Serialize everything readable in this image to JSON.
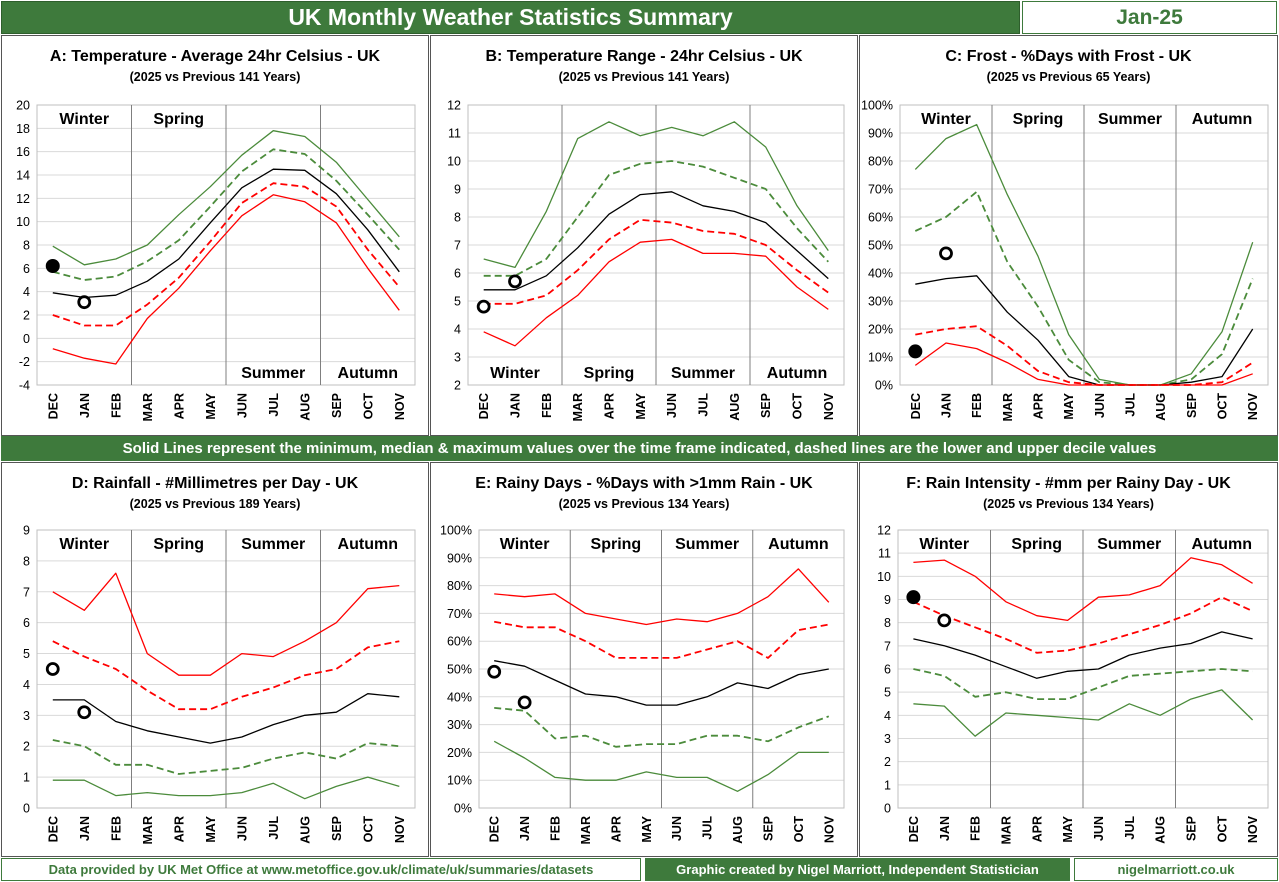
{
  "header": {
    "title": "UK Monthly Weather Statistics Summary",
    "date": "Jan-25"
  },
  "middle_note": "Solid Lines represent the minimum, median & maximum values over the time frame indicated, dashed lines are the lower and upper decile values",
  "footer": {
    "source": "Data provided by UK Met Office at www.metoffice.gov.uk/climate/uk/summaries/datasets",
    "credit": "Graphic created by Nigel Marriott, Independent Statistician",
    "website": "nigelmarriott.co.uk"
  },
  "colors": {
    "banner": "#3e7a3c",
    "green": "#4b8b3b",
    "red": "#ff0000",
    "black": "#000000"
  },
  "chart_data": [
    {
      "id": "A",
      "type": "line",
      "title": "A: Temperature - Average 24hr Celsius - UK",
      "subtitle": "(2025 vs Previous 141 Years)",
      "categories": [
        "DEC",
        "JAN",
        "FEB",
        "MAR",
        "APR",
        "MAY",
        "JUN",
        "JUL",
        "AUG",
        "SEP",
        "OCT",
        "NOV"
      ],
      "ylim": [
        -4,
        20
      ],
      "yticks": [
        -4,
        -2,
        0,
        2,
        4,
        6,
        8,
        10,
        12,
        14,
        16,
        18,
        20
      ],
      "percent": false,
      "season_labels": [
        "Winter",
        "Spring",
        "Summer",
        "Autumn"
      ],
      "season_label_pos": [
        "top",
        "top",
        "bottom",
        "bottom"
      ],
      "series": [
        {
          "role": "max",
          "color": "green",
          "dash": false,
          "values": [
            7.9,
            6.3,
            6.8,
            8.0,
            10.6,
            13.0,
            15.7,
            17.8,
            17.3,
            15.1,
            11.9,
            8.7
          ]
        },
        {
          "role": "upper-decile",
          "color": "green",
          "dash": true,
          "values": [
            5.7,
            5.0,
            5.3,
            6.6,
            8.4,
            11.3,
            14.3,
            16.2,
            15.8,
            13.5,
            10.6,
            7.6
          ]
        },
        {
          "role": "median",
          "color": "black",
          "dash": false,
          "values": [
            3.9,
            3.5,
            3.7,
            4.9,
            6.8,
            9.9,
            12.9,
            14.5,
            14.4,
            12.4,
            9.3,
            5.7
          ]
        },
        {
          "role": "lower-decile",
          "color": "red",
          "dash": true,
          "values": [
            2.0,
            1.1,
            1.1,
            2.9,
            5.2,
            8.3,
            11.6,
            13.3,
            13.0,
            11.3,
            7.6,
            4.4
          ]
        },
        {
          "role": "min",
          "color": "red",
          "dash": false,
          "values": [
            -0.9,
            -1.7,
            -2.2,
            1.7,
            4.3,
            7.5,
            10.5,
            12.3,
            11.7,
            9.9,
            6.0,
            2.4
          ]
        }
      ],
      "points": [
        {
          "label": "DEC",
          "value": 6.2,
          "filled": true
        },
        {
          "label": "JAN",
          "value": 3.1,
          "filled": false
        }
      ]
    },
    {
      "id": "B",
      "type": "line",
      "title": "B: Temperature Range - 24hr Celsius - UK",
      "subtitle": "(2025 vs Previous 141 Years)",
      "categories": [
        "DEC",
        "JAN",
        "FEB",
        "MAR",
        "APR",
        "MAY",
        "JUN",
        "JUL",
        "AUG",
        "SEP",
        "OCT",
        "NOV"
      ],
      "ylim": [
        2,
        12
      ],
      "yticks": [
        2,
        3,
        4,
        5,
        6,
        7,
        8,
        9,
        10,
        11,
        12
      ],
      "percent": false,
      "season_labels": [
        "Winter",
        "Spring",
        "Summer",
        "Autumn"
      ],
      "season_label_pos": [
        "bottom",
        "bottom",
        "bottom",
        "bottom"
      ],
      "series": [
        {
          "role": "max",
          "color": "green",
          "dash": false,
          "values": [
            6.5,
            6.2,
            8.2,
            10.8,
            11.4,
            10.9,
            11.2,
            10.9,
            11.4,
            10.5,
            8.4,
            6.8
          ]
        },
        {
          "role": "upper-decile",
          "color": "green",
          "dash": true,
          "values": [
            5.9,
            5.9,
            6.5,
            8.0,
            9.5,
            9.9,
            10.0,
            9.8,
            9.4,
            9.0,
            7.6,
            6.4
          ]
        },
        {
          "role": "median",
          "color": "black",
          "dash": false,
          "values": [
            5.4,
            5.4,
            5.9,
            6.9,
            8.1,
            8.8,
            8.9,
            8.4,
            8.2,
            7.8,
            6.8,
            5.8
          ]
        },
        {
          "role": "lower-decile",
          "color": "red",
          "dash": true,
          "values": [
            4.9,
            4.9,
            5.2,
            6.1,
            7.2,
            7.9,
            7.8,
            7.5,
            7.4,
            7.0,
            6.1,
            5.3
          ]
        },
        {
          "role": "min",
          "color": "red",
          "dash": false,
          "values": [
            3.9,
            3.4,
            4.4,
            5.2,
            6.4,
            7.1,
            7.2,
            6.7,
            6.7,
            6.6,
            5.5,
            4.7
          ]
        }
      ],
      "points": [
        {
          "label": "DEC",
          "value": 4.8,
          "filled": false
        },
        {
          "label": "JAN",
          "value": 5.7,
          "filled": false
        }
      ]
    },
    {
      "id": "C",
      "type": "line",
      "title": "C: Frost - %Days with Frost - UK",
      "subtitle": "(2025 vs Previous 65 Years)",
      "categories": [
        "DEC",
        "JAN",
        "FEB",
        "MAR",
        "APR",
        "MAY",
        "JUN",
        "JUL",
        "AUG",
        "SEP",
        "OCT",
        "NOV"
      ],
      "ylim": [
        0,
        100
      ],
      "yticks": [
        0,
        10,
        20,
        30,
        40,
        50,
        60,
        70,
        80,
        90,
        100
      ],
      "percent": true,
      "season_labels": [
        "Winter",
        "Spring",
        "Summer",
        "Autumn"
      ],
      "season_label_pos": [
        "top",
        "top",
        "top",
        "top"
      ],
      "series": [
        {
          "role": "max",
          "color": "green",
          "dash": false,
          "values": [
            77,
            88,
            93,
            68,
            46,
            18,
            2,
            0,
            0,
            4,
            19,
            51
          ]
        },
        {
          "role": "upper-decile",
          "color": "green",
          "dash": true,
          "values": [
            55,
            60,
            69,
            44,
            28,
            9,
            1,
            0,
            0,
            2,
            11,
            38
          ]
        },
        {
          "role": "median",
          "color": "black",
          "dash": false,
          "values": [
            36,
            38,
            39,
            26,
            16,
            3,
            0,
            0,
            0,
            1,
            3,
            20
          ]
        },
        {
          "role": "lower-decile",
          "color": "red",
          "dash": true,
          "values": [
            18,
            20,
            21,
            14,
            5,
            1,
            0,
            0,
            0,
            0,
            1,
            8
          ]
        },
        {
          "role": "min",
          "color": "red",
          "dash": false,
          "values": [
            7,
            15,
            13,
            8,
            2,
            0,
            0,
            0,
            0,
            0,
            0,
            4
          ]
        }
      ],
      "points": [
        {
          "label": "DEC",
          "value": 12,
          "filled": true
        },
        {
          "label": "JAN",
          "value": 47,
          "filled": false
        }
      ]
    },
    {
      "id": "D",
      "type": "line",
      "title": "D: Rainfall - #Millimetres per Day - UK",
      "subtitle": "(2025 vs Previous 189 Years)",
      "categories": [
        "DEC",
        "JAN",
        "FEB",
        "MAR",
        "APR",
        "MAY",
        "JUN",
        "JUL",
        "AUG",
        "SEP",
        "OCT",
        "NOV"
      ],
      "ylim": [
        0,
        9
      ],
      "yticks": [
        0,
        1,
        2,
        3,
        4,
        5,
        6,
        7,
        8,
        9
      ],
      "percent": false,
      "season_labels": [
        "Winter",
        "Spring",
        "Summer",
        "Autumn"
      ],
      "season_label_pos": [
        "top",
        "top",
        "top",
        "top"
      ],
      "series": [
        {
          "role": "max",
          "color": "red",
          "dash": false,
          "values": [
            7.0,
            6.4,
            7.6,
            5.0,
            4.3,
            4.3,
            5.0,
            4.9,
            5.4,
            6.0,
            7.1,
            7.2
          ]
        },
        {
          "role": "upper-decile",
          "color": "red",
          "dash": true,
          "values": [
            5.4,
            4.9,
            4.5,
            3.8,
            3.2,
            3.2,
            3.6,
            3.9,
            4.3,
            4.5,
            5.2,
            5.4
          ]
        },
        {
          "role": "median",
          "color": "black",
          "dash": false,
          "values": [
            3.5,
            3.5,
            2.8,
            2.5,
            2.3,
            2.1,
            2.3,
            2.7,
            3.0,
            3.1,
            3.7,
            3.6
          ]
        },
        {
          "role": "lower-decile",
          "color": "green",
          "dash": true,
          "values": [
            2.2,
            2.0,
            1.4,
            1.4,
            1.1,
            1.2,
            1.3,
            1.6,
            1.8,
            1.6,
            2.1,
            2.0
          ]
        },
        {
          "role": "min",
          "color": "green",
          "dash": false,
          "values": [
            0.9,
            0.9,
            0.4,
            0.5,
            0.4,
            0.4,
            0.5,
            0.8,
            0.3,
            0.7,
            1.0,
            0.7
          ]
        }
      ],
      "points": [
        {
          "label": "DEC",
          "value": 4.5,
          "filled": false
        },
        {
          "label": "JAN",
          "value": 3.1,
          "filled": false
        }
      ]
    },
    {
      "id": "E",
      "type": "line",
      "title": "E: Rainy Days - %Days with >1mm Rain - UK",
      "subtitle": "(2025 vs Previous 134 Years)",
      "categories": [
        "DEC",
        "JAN",
        "FEB",
        "MAR",
        "APR",
        "MAY",
        "JUN",
        "JUL",
        "AUG",
        "SEP",
        "OCT",
        "NOV"
      ],
      "ylim": [
        0,
        100
      ],
      "yticks": [
        0,
        10,
        20,
        30,
        40,
        50,
        60,
        70,
        80,
        90,
        100
      ],
      "percent": true,
      "season_labels": [
        "Winter",
        "Spring",
        "Summer",
        "Autumn"
      ],
      "season_label_pos": [
        "top",
        "top",
        "top",
        "top"
      ],
      "series": [
        {
          "role": "max",
          "color": "red",
          "dash": false,
          "values": [
            77,
            76,
            77,
            70,
            68,
            66,
            68,
            67,
            70,
            76,
            86,
            74
          ]
        },
        {
          "role": "upper-decile",
          "color": "red",
          "dash": true,
          "values": [
            67,
            65,
            65,
            60,
            54,
            54,
            54,
            57,
            60,
            54,
            64,
            66
          ]
        },
        {
          "role": "median",
          "color": "black",
          "dash": false,
          "values": [
            53,
            51,
            46,
            41,
            40,
            37,
            37,
            40,
            45,
            43,
            48,
            50
          ]
        },
        {
          "role": "lower-decile",
          "color": "green",
          "dash": true,
          "values": [
            36,
            35,
            25,
            26,
            22,
            23,
            23,
            26,
            26,
            24,
            29,
            33
          ]
        },
        {
          "role": "min",
          "color": "green",
          "dash": false,
          "values": [
            24,
            18,
            11,
            10,
            10,
            13,
            11,
            11,
            6,
            12,
            20,
            20
          ]
        }
      ],
      "points": [
        {
          "label": "DEC",
          "value": 49,
          "filled": false
        },
        {
          "label": "JAN",
          "value": 38,
          "filled": false
        }
      ]
    },
    {
      "id": "F",
      "type": "line",
      "title": "F: Rain Intensity - #mm per Rainy Day - UK",
      "subtitle": "(2025 vs Previous 134 Years)",
      "categories": [
        "DEC",
        "JAN",
        "FEB",
        "MAR",
        "APR",
        "MAY",
        "JUN",
        "JUL",
        "AUG",
        "SEP",
        "OCT",
        "NOV"
      ],
      "ylim": [
        0,
        12
      ],
      "yticks": [
        0,
        1,
        2,
        3,
        4,
        5,
        6,
        7,
        8,
        9,
        10,
        11,
        12
      ],
      "percent": false,
      "season_labels": [
        "Winter",
        "Spring",
        "Summer",
        "Autumn"
      ],
      "season_label_pos": [
        "top",
        "top",
        "top",
        "top"
      ],
      "series": [
        {
          "role": "max",
          "color": "red",
          "dash": false,
          "values": [
            10.6,
            10.7,
            10.0,
            8.9,
            8.3,
            8.1,
            9.1,
            9.2,
            9.6,
            10.8,
            10.5,
            9.7
          ]
        },
        {
          "role": "upper-decile",
          "color": "red",
          "dash": true,
          "values": [
            8.9,
            8.3,
            7.8,
            7.3,
            6.7,
            6.8,
            7.1,
            7.5,
            7.9,
            8.4,
            9.1,
            8.5
          ]
        },
        {
          "role": "median",
          "color": "black",
          "dash": false,
          "values": [
            7.3,
            7.0,
            6.6,
            6.1,
            5.6,
            5.9,
            6.0,
            6.6,
            6.9,
            7.1,
            7.6,
            7.3
          ]
        },
        {
          "role": "lower-decile",
          "color": "green",
          "dash": true,
          "values": [
            6.0,
            5.7,
            4.8,
            5.0,
            4.7,
            4.7,
            5.2,
            5.7,
            5.8,
            5.9,
            6.0,
            5.9
          ]
        },
        {
          "role": "min",
          "color": "green",
          "dash": false,
          "values": [
            4.5,
            4.4,
            3.1,
            4.1,
            4.0,
            3.9,
            3.8,
            4.5,
            4.0,
            4.7,
            5.1,
            3.8
          ]
        }
      ],
      "points": [
        {
          "label": "DEC",
          "value": 9.1,
          "filled": true
        },
        {
          "label": "JAN",
          "value": 8.1,
          "filled": false
        }
      ]
    }
  ]
}
